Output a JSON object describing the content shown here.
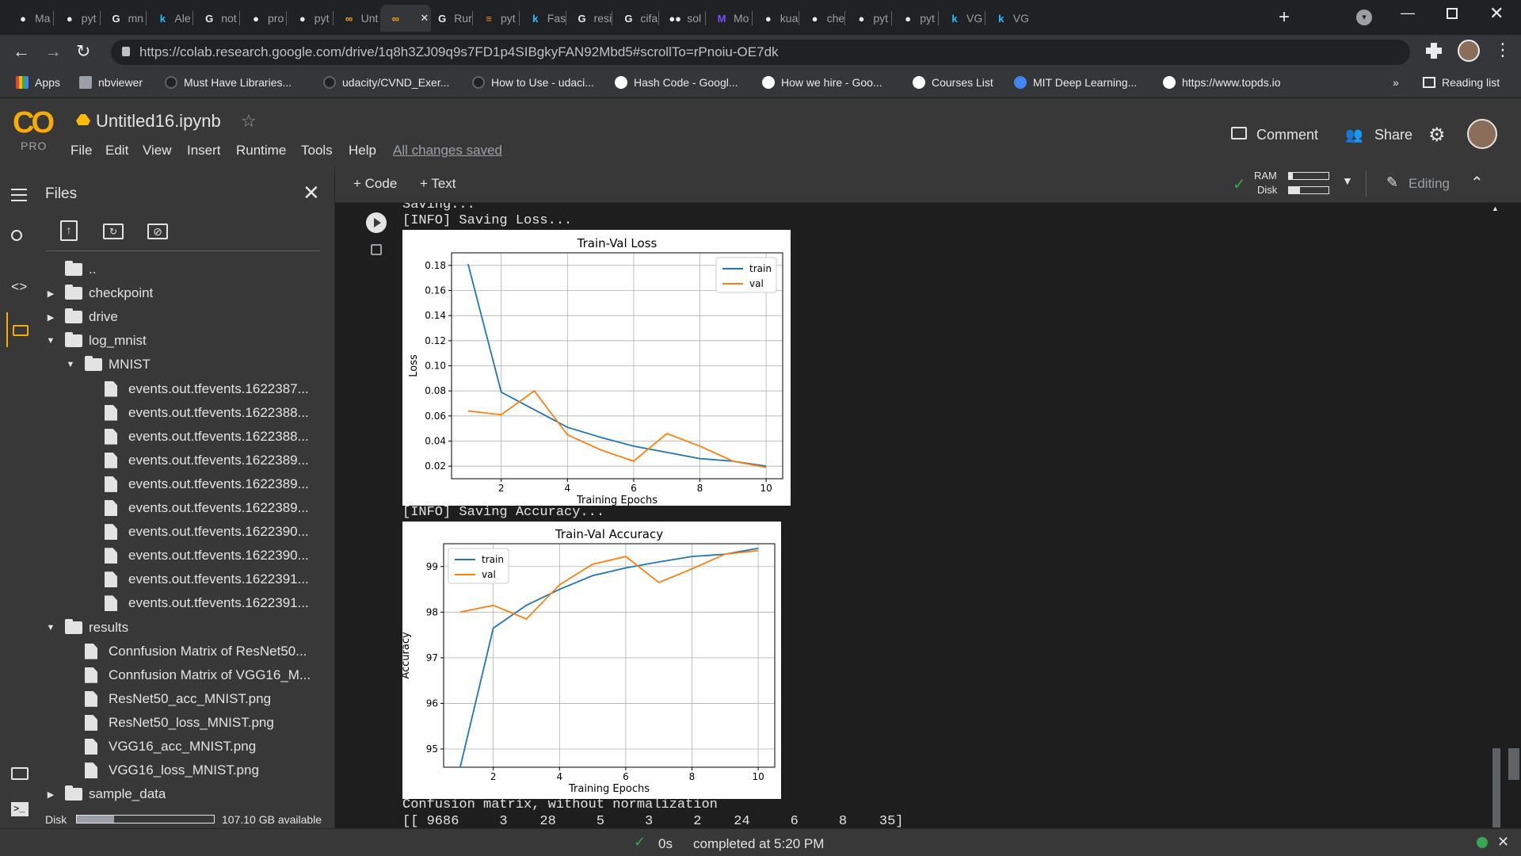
{
  "tabs": [
    {
      "label": "Ma",
      "icon": "github-icon"
    },
    {
      "label": "pyt",
      "icon": "github-icon"
    },
    {
      "label": "mn",
      "icon": "google-icon"
    },
    {
      "label": "Ale",
      "icon": "kaggle-icon"
    },
    {
      "label": "not",
      "icon": "google-icon"
    },
    {
      "label": "pro",
      "icon": "github-icon"
    },
    {
      "label": "pyt",
      "icon": "github-icon"
    },
    {
      "label": "Unt",
      "icon": "colab-icon"
    },
    {
      "label": "",
      "icon": "colab-icon",
      "active": true
    },
    {
      "label": "Rur",
      "icon": "google-icon"
    },
    {
      "label": "pyt",
      "icon": "stackoverflow-icon"
    },
    {
      "label": "Fas",
      "icon": "kaggle-icon"
    },
    {
      "label": "resi",
      "icon": "google-icon"
    },
    {
      "label": "cifa",
      "icon": "google-icon"
    },
    {
      "label": "sol",
      "icon": "medium-icon"
    },
    {
      "label": "Mo",
      "icon": "m-icon"
    },
    {
      "label": "kua",
      "icon": "github-icon"
    },
    {
      "label": "che",
      "icon": "github-icon"
    },
    {
      "label": "pyt",
      "icon": "github-icon"
    },
    {
      "label": "pyt",
      "icon": "github-icon"
    },
    {
      "label": "VG",
      "icon": "kaggle-icon"
    },
    {
      "label": "VG",
      "icon": "kaggle-icon"
    }
  ],
  "url": "https://colab.research.google.com/drive/1q8h3ZJ09q9s7FD1p4SIBgkyFAN92Mbd5#scrollTo=rPnoiu-OE7dk",
  "bookmarks": [
    {
      "label": "Apps",
      "icon": "apps-icon",
      "color": "#4285f4"
    },
    {
      "label": "nbviewer",
      "icon": "nbviewer-icon",
      "color": "#9aa0a6"
    },
    {
      "label": "Must Have Libraries...",
      "icon": "github-icon",
      "color": "#202124"
    },
    {
      "label": "udacity/CVND_Exer...",
      "icon": "github-icon",
      "color": "#202124"
    },
    {
      "label": "How to Use - udaci...",
      "icon": "github-icon",
      "color": "#202124"
    },
    {
      "label": "Hash Code - Googl...",
      "icon": "google-icon",
      "color": "#ffffff"
    },
    {
      "label": "How we hire - Goo...",
      "icon": "google-icon",
      "color": "#ffffff"
    },
    {
      "label": "Courses List",
      "icon": "google-icon",
      "color": "#ffffff"
    },
    {
      "label": "MIT Deep Learning...",
      "icon": "share-icon",
      "color": "#4285f4"
    },
    {
      "label": "https://www.topds.io",
      "icon": "wordpress-icon",
      "color": "#ffffff"
    }
  ],
  "reading_list": "Reading list",
  "more_bookmarks": "»",
  "colab": {
    "logo": "CO",
    "pro": "PRO",
    "title": "Untitled16.ipynb",
    "menu": [
      "File",
      "Edit",
      "View",
      "Insert",
      "Runtime",
      "Tools",
      "Help"
    ],
    "saved": "All changes saved",
    "comment": "Comment",
    "share": "Share",
    "add_code": "+ Code",
    "add_text": "+ Text",
    "ram": "RAM",
    "disk": "Disk",
    "editing": "Editing"
  },
  "files": {
    "title": "Files",
    "items": [
      {
        "label": "..",
        "type": "up",
        "indent": 0
      },
      {
        "label": "checkpoint",
        "type": "folder",
        "caret": "right",
        "indent": 0
      },
      {
        "label": "drive",
        "type": "folder",
        "caret": "right",
        "indent": 0
      },
      {
        "label": "log_mnist",
        "type": "folder",
        "caret": "down",
        "indent": 0
      },
      {
        "label": "MNIST",
        "type": "folder",
        "caret": "down",
        "indent": 1
      },
      {
        "label": "events.out.tfevents.1622387...",
        "type": "file",
        "indent": 2
      },
      {
        "label": "events.out.tfevents.1622388...",
        "type": "file",
        "indent": 2
      },
      {
        "label": "events.out.tfevents.1622388...",
        "type": "file",
        "indent": 2
      },
      {
        "label": "events.out.tfevents.1622389...",
        "type": "file",
        "indent": 2
      },
      {
        "label": "events.out.tfevents.1622389...",
        "type": "file",
        "indent": 2
      },
      {
        "label": "events.out.tfevents.1622389...",
        "type": "file",
        "indent": 2
      },
      {
        "label": "events.out.tfevents.1622390...",
        "type": "file",
        "indent": 2
      },
      {
        "label": "events.out.tfevents.1622390...",
        "type": "file",
        "indent": 2
      },
      {
        "label": "events.out.tfevents.1622391...",
        "type": "file",
        "indent": 2
      },
      {
        "label": "events.out.tfevents.1622391...",
        "type": "file",
        "indent": 2
      },
      {
        "label": "results",
        "type": "folder",
        "caret": "down",
        "indent": 0
      },
      {
        "label": "Connfusion Matrix of ResNet50...",
        "type": "file",
        "indent": 1
      },
      {
        "label": "Connfusion Matrix of VGG16_M...",
        "type": "file",
        "indent": 1
      },
      {
        "label": "ResNet50_acc_MNIST.png",
        "type": "file",
        "indent": 1
      },
      {
        "label": "ResNet50_loss_MNIST.png",
        "type": "file",
        "indent": 1
      },
      {
        "label": "VGG16_acc_MNIST.png",
        "type": "file",
        "indent": 1
      },
      {
        "label": "VGG16_loss_MNIST.png",
        "type": "file",
        "indent": 1
      },
      {
        "label": "sample_data",
        "type": "folder",
        "caret": "right",
        "indent": 0
      }
    ],
    "disk_label": "Disk",
    "disk_available": "107.10 GB available",
    "disk_used_fraction": 0.27
  },
  "output": {
    "line_saving": "Saving...",
    "line_loss": "[INFO] Saving Loss...",
    "line_acc": "[INFO] Saving Accuracy...",
    "line_cm": "Confusion matrix, without normalization",
    "line_row": "[[ 9686     3    28     5     3     2    24     6     8    35]"
  },
  "status": {
    "time": "0s",
    "completed": "completed at 5:20 PM"
  },
  "chart_data": [
    {
      "type": "line",
      "title": "Train-Val Loss",
      "xlabel": "Training Epochs",
      "ylabel": "Loss",
      "x": [
        1,
        2,
        3,
        4,
        5,
        6,
        7,
        8,
        9,
        10
      ],
      "xlim": [
        0.5,
        10.5
      ],
      "ylim": [
        0.01,
        0.19
      ],
      "xticks": [
        2,
        4,
        6,
        8,
        10
      ],
      "yticks": [
        0.02,
        0.04,
        0.06,
        0.08,
        0.1,
        0.12,
        0.14,
        0.16,
        0.18
      ],
      "ytick_labels": [
        "0.02",
        "0.04",
        "0.06",
        "0.08",
        "0.10",
        "0.12",
        "0.14",
        "0.16",
        "0.18"
      ],
      "legend": "top-right",
      "grid": true,
      "series": [
        {
          "name": "train",
          "color": "#1f77b4",
          "values": [
            0.181,
            0.079,
            0.065,
            0.051,
            0.043,
            0.036,
            0.031,
            0.026,
            0.024,
            0.02
          ]
        },
        {
          "name": "val",
          "color": "#ff7f0e",
          "values": [
            0.064,
            0.061,
            0.08,
            0.045,
            0.033,
            0.024,
            0.046,
            0.036,
            0.024,
            0.019
          ]
        }
      ]
    },
    {
      "type": "line",
      "title": "Train-Val Accuracy",
      "xlabel": "Training Epochs",
      "ylabel": "Accuracy",
      "x": [
        1,
        2,
        3,
        4,
        5,
        6,
        7,
        8,
        9,
        10
      ],
      "xlim": [
        0.5,
        10.5
      ],
      "ylim": [
        94.6,
        99.5
      ],
      "xticks": [
        2,
        4,
        6,
        8,
        10
      ],
      "yticks": [
        95,
        96,
        97,
        98,
        99
      ],
      "ytick_labels": [
        "95",
        "96",
        "97",
        "98",
        "99"
      ],
      "legend": "top-left",
      "grid": true,
      "series": [
        {
          "name": "train",
          "color": "#1f77b4",
          "values": [
            94.6,
            97.65,
            98.15,
            98.5,
            98.8,
            98.97,
            99.1,
            99.22,
            99.27,
            99.4
          ]
        },
        {
          "name": "val",
          "color": "#ff7f0e",
          "values": [
            98.0,
            98.15,
            97.85,
            98.6,
            99.05,
            99.22,
            98.65,
            98.95,
            99.27,
            99.35
          ]
        }
      ]
    }
  ]
}
